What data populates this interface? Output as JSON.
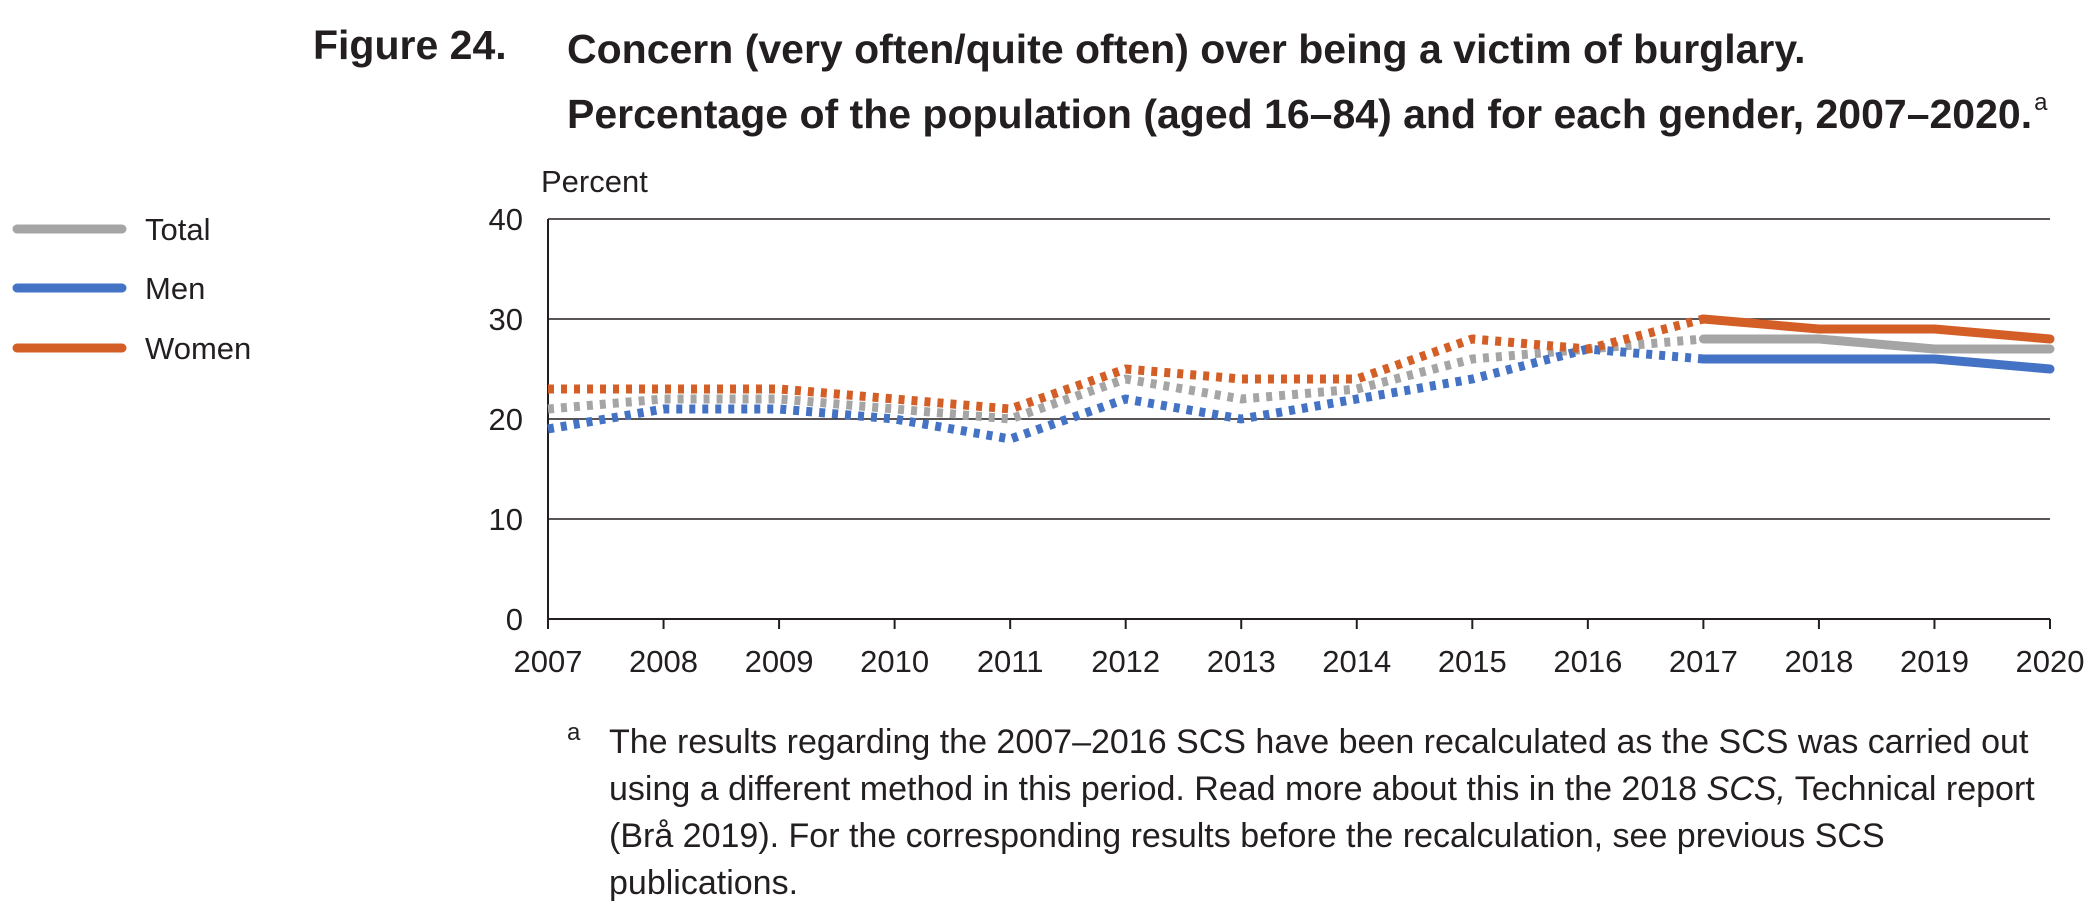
{
  "figure": {
    "label": "Figure 24.",
    "title_line1": "Concern (very often/quite often) over being a victim of burglary.",
    "title_line2": "Percentage of the population (aged 16–84) and for each gender, 2007–2020.",
    "title_footnote_mark": "a"
  },
  "chart_data": {
    "type": "line",
    "ylabel": "Percent",
    "xlabel": "",
    "x": [
      "2007",
      "2008",
      "2009",
      "2010",
      "2011",
      "2012",
      "2013",
      "2014",
      "2015",
      "2016",
      "2017",
      "2018",
      "2019",
      "2020"
    ],
    "ylim": [
      0,
      40
    ],
    "yticks": [
      "0",
      "10",
      "20",
      "30",
      "40"
    ],
    "grid": true,
    "legend_position": "left",
    "recalculated_through": "2016",
    "recalculated_style": "dotted",
    "series": [
      {
        "name": "Total",
        "color": "#a5a5a5",
        "values": [
          21,
          22,
          22,
          21,
          20,
          24,
          22,
          23,
          26,
          27,
          28,
          28,
          27,
          27
        ]
      },
      {
        "name": "Men",
        "color": "#4472c4",
        "values": [
          19,
          21,
          21,
          20,
          18,
          22,
          20,
          22,
          24,
          27,
          26,
          26,
          26,
          25
        ]
      },
      {
        "name": "Women",
        "color": "#d35f26",
        "values": [
          23,
          23,
          23,
          22,
          21,
          25,
          24,
          24,
          28,
          27,
          30,
          29,
          29,
          28
        ]
      }
    ]
  },
  "footnote": {
    "mark": "a",
    "text_before_italic": "The results regarding the 2007–2016 SCS have been recalculated as the SCS was carried out using a different method in this period. Read more about this in the 2018 ",
    "italic": "SCS,",
    "text_after_italic": " Technical report (Brå 2019). For the corresponding results before the recalculation, see previous SCS publications."
  }
}
